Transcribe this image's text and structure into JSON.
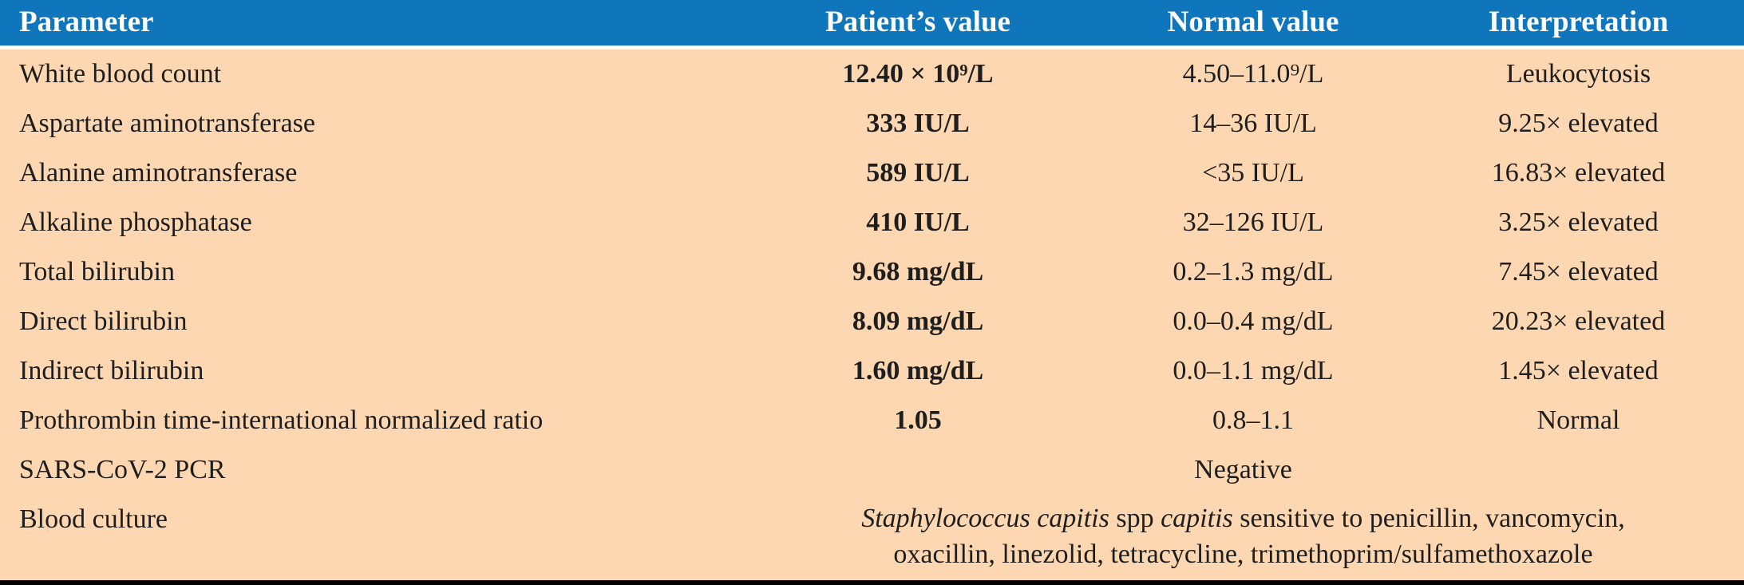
{
  "table": {
    "columns": [
      "Parameter",
      "Patient’s value",
      "Normal value",
      "Interpretation"
    ],
    "rows": [
      {
        "parameter": "White blood count",
        "patient_value": "12.40 × 10⁹/L",
        "normal_value": "4.50–11.0⁹/L",
        "interpretation": "Leukocytosis"
      },
      {
        "parameter": "Aspartate aminotransferase",
        "patient_value": "333 IU/L",
        "normal_value": "14–36 IU/L",
        "interpretation": "9.25× elevated"
      },
      {
        "parameter": "Alanine aminotransferase",
        "patient_value": "589 IU/L",
        "normal_value": "<35 IU/L",
        "interpretation": "16.83× elevated"
      },
      {
        "parameter": "Alkaline phosphatase",
        "patient_value": "410 IU/L",
        "normal_value": "32–126 IU/L",
        "interpretation": "3.25× elevated"
      },
      {
        "parameter": "Total bilirubin",
        "patient_value": "9.68 mg/dL",
        "normal_value": "0.2–1.3 mg/dL",
        "interpretation": "7.45× elevated"
      },
      {
        "parameter": "Direct bilirubin",
        "patient_value": "8.09 mg/dL",
        "normal_value": "0.0–0.4 mg/dL",
        "interpretation": "20.23× elevated"
      },
      {
        "parameter": "Indirect bilirubin",
        "patient_value": "1.60 mg/dL",
        "normal_value": "0.0–1.1 mg/dL",
        "interpretation": "1.45× elevated"
      },
      {
        "parameter": "Prothrombin time-international normalized ratio",
        "patient_value": "1.05",
        "normal_value": "0.8–1.1",
        "interpretation": "Normal"
      }
    ],
    "span_rows": {
      "sars": {
        "parameter": "SARS-CoV-2 PCR",
        "value": "Negative"
      },
      "blood_culture": {
        "parameter": "Blood culture",
        "line1_italic1": "Staphylococcus capitis",
        "line1_roman1": " spp ",
        "line1_italic2": "capitis",
        "line1_roman2": " sensitive to penicillin, vancomycin,",
        "line2": "oxacillin, linezolid, tetracycline, trimethoprim/sulfamethoxazole"
      }
    }
  },
  "colors": {
    "header_bg": "#0f76bc",
    "header_text": "#ffffff",
    "body_bg": "#fcd7b1",
    "body_text": "#1e1e1e",
    "bottom_bar": "#000000"
  }
}
